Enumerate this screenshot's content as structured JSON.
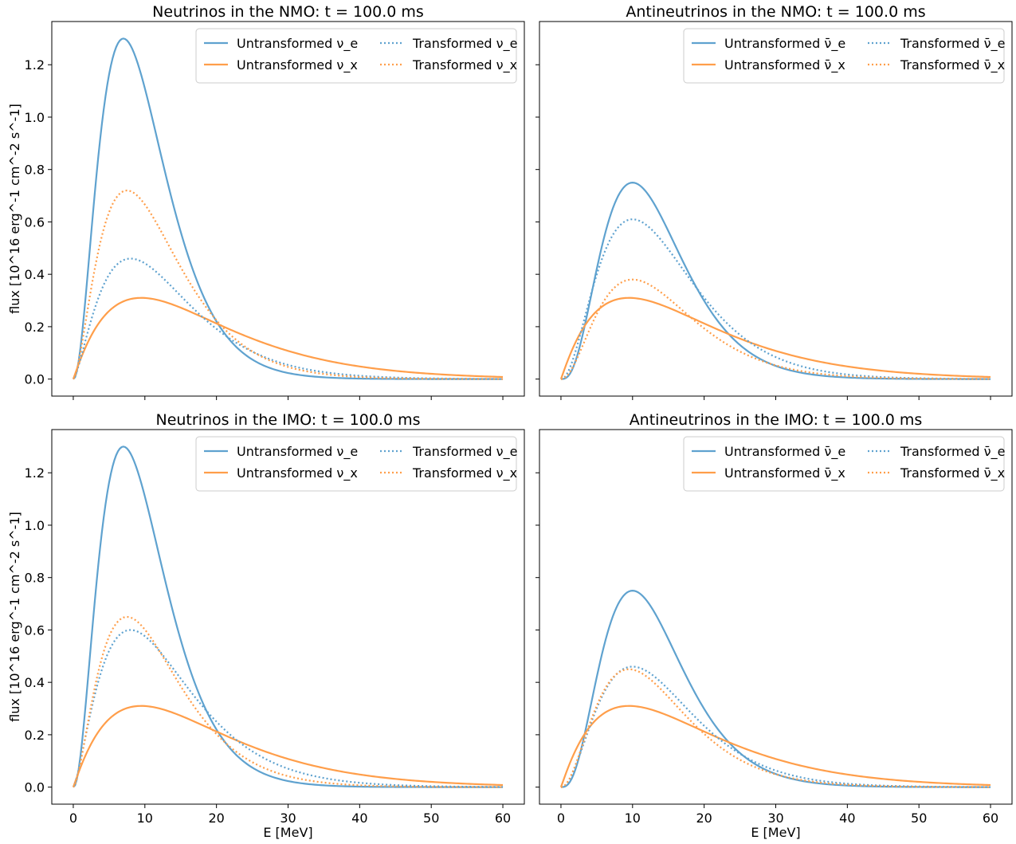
{
  "x_axis": {
    "label": "E [MeV]",
    "ticks": [
      0,
      10,
      20,
      30,
      40,
      50,
      60
    ],
    "range": [
      -3,
      63
    ]
  },
  "y_axis": {
    "label": "flux [10^16 erg^-1 cm^-2 s^-1]",
    "ticks": [
      0.0,
      0.2,
      0.4,
      0.6,
      0.8,
      1.0,
      1.2
    ],
    "range": [
      -0.065,
      1.365
    ]
  },
  "colors": {
    "nu_e": "#5fa2cf",
    "nu_x": "#ff9e4a"
  },
  "chart_data": [
    {
      "type": "line",
      "title": "Neutrinos in the NMO: t = 100.0 ms",
      "legend_position": "top-right",
      "series": [
        {
          "name": "Untransformed ν_e",
          "style": "solid",
          "color_key": "nu_e",
          "peak_E": 7.0,
          "peak_flux": 1.3
        },
        {
          "name": "Untransformed ν_x",
          "style": "solid",
          "color_key": "nu_x",
          "peak_E": 9.5,
          "peak_flux": 0.31
        },
        {
          "name": "Transformed ν_e",
          "style": "dotted",
          "color_key": "nu_e",
          "peak_E": 8.0,
          "peak_flux": 0.46
        },
        {
          "name": "Transformed ν_x",
          "style": "dotted",
          "color_key": "nu_x",
          "peak_E": 7.5,
          "peak_flux": 0.72
        }
      ]
    },
    {
      "type": "line",
      "title": "Antineutrinos in the NMO: t = 100.0 ms",
      "legend_position": "top-right",
      "series": [
        {
          "name": "Untransformed ν̄_e",
          "style": "solid",
          "color_key": "nu_e",
          "peak_E": 10.0,
          "peak_flux": 0.75
        },
        {
          "name": "Untransformed ν̄_x",
          "style": "solid",
          "color_key": "nu_x",
          "peak_E": 9.5,
          "peak_flux": 0.31
        },
        {
          "name": "Transformed ν̄_e",
          "style": "dotted",
          "color_key": "nu_e",
          "peak_E": 10.0,
          "peak_flux": 0.61
        },
        {
          "name": "Transformed ν̄_x",
          "style": "dotted",
          "color_key": "nu_x",
          "peak_E": 10.0,
          "peak_flux": 0.38
        }
      ]
    },
    {
      "type": "line",
      "title": "Neutrinos in the IMO: t = 100.0 ms",
      "legend_position": "top-right",
      "series": [
        {
          "name": "Untransformed ν_e",
          "style": "solid",
          "color_key": "nu_e",
          "peak_E": 7.0,
          "peak_flux": 1.3
        },
        {
          "name": "Untransformed ν_x",
          "style": "solid",
          "color_key": "nu_x",
          "peak_E": 9.5,
          "peak_flux": 0.31
        },
        {
          "name": "Transformed ν_e",
          "style": "dotted",
          "color_key": "nu_e",
          "peak_E": 8.0,
          "peak_flux": 0.6
        },
        {
          "name": "Transformed ν_x",
          "style": "dotted",
          "color_key": "nu_x",
          "peak_E": 7.5,
          "peak_flux": 0.65
        }
      ]
    },
    {
      "type": "line",
      "title": "Antineutrinos in the IMO: t = 100.0 ms",
      "legend_position": "top-right",
      "series": [
        {
          "name": "Untransformed ν̄_e",
          "style": "solid",
          "color_key": "nu_e",
          "peak_E": 10.0,
          "peak_flux": 0.75
        },
        {
          "name": "Untransformed ν̄_x",
          "style": "solid",
          "color_key": "nu_x",
          "peak_E": 9.5,
          "peak_flux": 0.31
        },
        {
          "name": "Transformed ν̄_e",
          "style": "dotted",
          "color_key": "nu_e",
          "peak_E": 10.0,
          "peak_flux": 0.46
        },
        {
          "name": "Transformed ν̄_x",
          "style": "dotted",
          "color_key": "nu_x",
          "peak_E": 9.5,
          "peak_flux": 0.45
        }
      ]
    }
  ]
}
